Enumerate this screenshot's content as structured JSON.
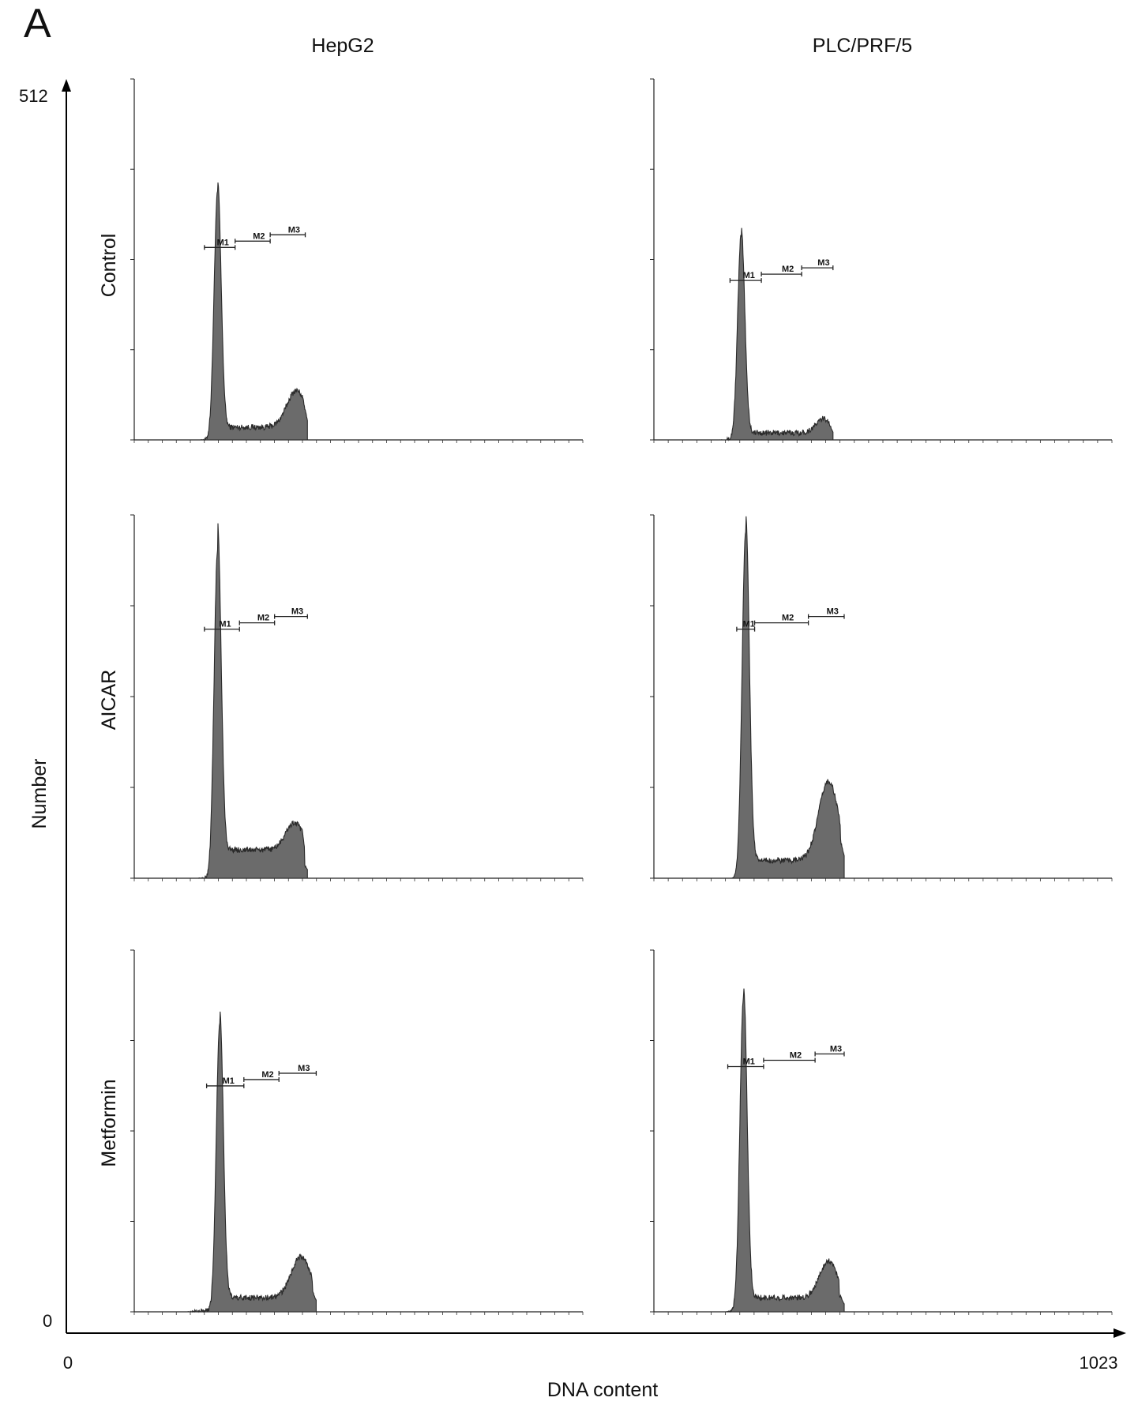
{
  "panel_letter": "A",
  "chart_data": {
    "type": "area",
    "ylabel": "Number",
    "xlabel": "DNA content",
    "xlim": [
      0,
      1023
    ],
    "ylim": [
      0,
      512
    ],
    "x_ticks": [
      "0",
      "1023"
    ],
    "y_ticks": [
      "0",
      "512"
    ],
    "columns": [
      "HepG2",
      "PLC/PRF/5"
    ],
    "rows": [
      "Control",
      "AICAR",
      "Metformin"
    ],
    "fill_color": "#6b6b6b",
    "marker_labels": [
      "M1",
      "M2",
      "M3"
    ],
    "panels": [
      {
        "column": "HepG2",
        "row": "Control",
        "g1": {
          "center": 190,
          "height": 350,
          "width": 8
        },
        "g2": {
          "center": 370,
          "height": 52,
          "width": 22
        },
        "s_level": 18,
        "range": [
          150,
          395
        ],
        "markers": [
          [
            160,
            230
          ],
          [
            230,
            310
          ],
          [
            310,
            390
          ]
        ]
      },
      {
        "column": "PLC/PRF/5",
        "row": "Control",
        "g1": {
          "center": 195,
          "height": 290,
          "width": 8
        },
        "g2": {
          "center": 380,
          "height": 20,
          "width": 18
        },
        "s_level": 10,
        "range": [
          145,
          400
        ],
        "markers": [
          [
            170,
            240
          ],
          [
            240,
            330
          ],
          [
            330,
            400
          ]
        ]
      },
      {
        "column": "HepG2",
        "row": "AICAR",
        "g1": {
          "center": 190,
          "height": 460,
          "width": 8
        },
        "g2": {
          "center": 365,
          "height": 38,
          "width": 20
        },
        "s_level": 40,
        "range": [
          145,
          395
        ],
        "markers": [
          [
            160,
            240
          ],
          [
            240,
            320
          ],
          [
            320,
            395
          ]
        ]
      },
      {
        "column": "PLC/PRF/5",
        "row": "AICAR",
        "g1": {
          "center": 205,
          "height": 490,
          "width": 8
        },
        "g2": {
          "center": 390,
          "height": 112,
          "width": 22
        },
        "s_level": 25,
        "range": [
          175,
          425
        ],
        "markers": [
          [
            185,
            225
          ],
          [
            225,
            345
          ],
          [
            345,
            425
          ]
        ]
      },
      {
        "column": "HepG2",
        "row": "Metformin",
        "g1": {
          "center": 195,
          "height": 410,
          "width": 8
        },
        "g2": {
          "center": 380,
          "height": 58,
          "width": 22
        },
        "s_level": 20,
        "range": [
          120,
          415
        ],
        "markers": [
          [
            165,
            250
          ],
          [
            250,
            330
          ],
          [
            330,
            415
          ]
        ]
      },
      {
        "column": "PLC/PRF/5",
        "row": "Metformin",
        "g1": {
          "center": 200,
          "height": 445,
          "width": 8
        },
        "g2": {
          "center": 390,
          "height": 52,
          "width": 20
        },
        "s_level": 20,
        "range": [
          160,
          425
        ],
        "markers": [
          [
            165,
            245
          ],
          [
            245,
            360
          ],
          [
            360,
            425
          ]
        ]
      }
    ]
  }
}
